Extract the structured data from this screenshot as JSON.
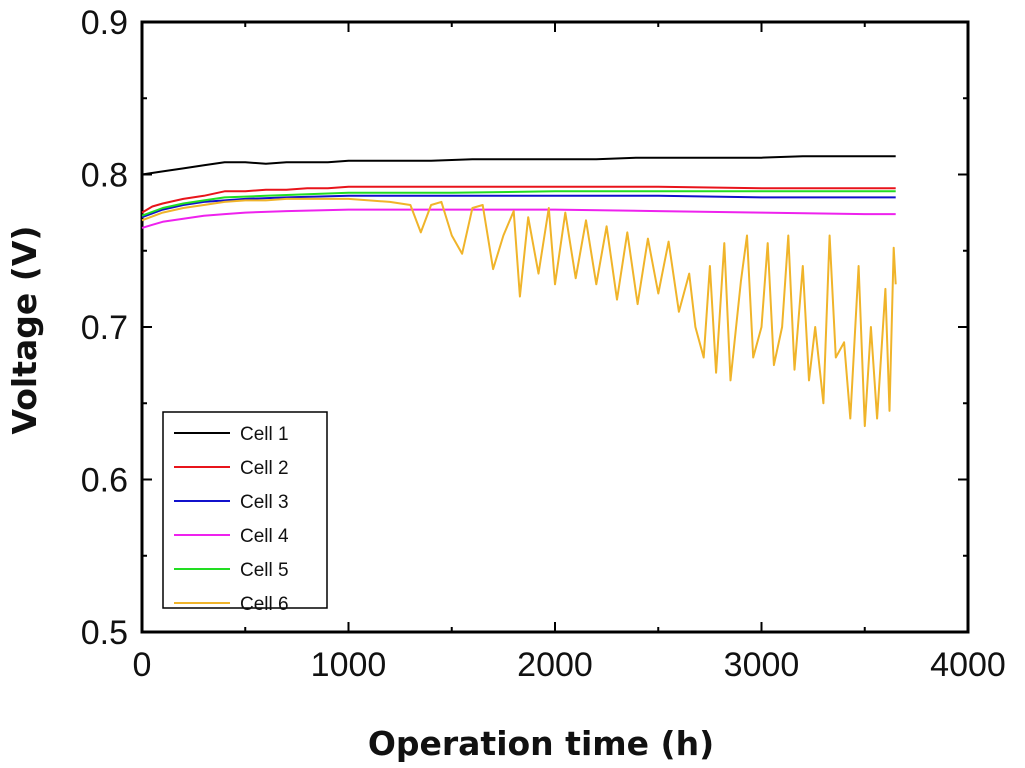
{
  "chart_data": {
    "type": "line",
    "title": "",
    "xlabel": "Operation time (h)",
    "ylabel": "Voltage (V)",
    "xlim": [
      0,
      4000
    ],
    "ylim": [
      0.5,
      0.9
    ],
    "x_ticks": [
      0,
      1000,
      2000,
      3000,
      4000
    ],
    "y_ticks": [
      0.5,
      0.6,
      0.7,
      0.8,
      0.9
    ],
    "x_tick_labels": [
      "0",
      "1000",
      "2000",
      "3000",
      "4000"
    ],
    "y_tick_labels": [
      "0.5",
      "0.6",
      "0.7",
      "0.8",
      "0.9"
    ],
    "grid": false,
    "legend_position": "bottom-left",
    "series": [
      {
        "name": "Cell 1",
        "color": "#000000",
        "points": [
          [
            0,
            0.8
          ],
          [
            100,
            0.802
          ],
          [
            200,
            0.804
          ],
          [
            300,
            0.806
          ],
          [
            400,
            0.808
          ],
          [
            500,
            0.808
          ],
          [
            600,
            0.807
          ],
          [
            700,
            0.808
          ],
          [
            800,
            0.808
          ],
          [
            900,
            0.808
          ],
          [
            1000,
            0.809
          ],
          [
            1200,
            0.809
          ],
          [
            1400,
            0.809
          ],
          [
            1600,
            0.81
          ],
          [
            1800,
            0.81
          ],
          [
            2000,
            0.81
          ],
          [
            2200,
            0.81
          ],
          [
            2400,
            0.811
          ],
          [
            2600,
            0.811
          ],
          [
            2800,
            0.811
          ],
          [
            3000,
            0.811
          ],
          [
            3200,
            0.812
          ],
          [
            3400,
            0.812
          ],
          [
            3600,
            0.812
          ],
          [
            3650,
            0.812
          ]
        ]
      },
      {
        "name": "Cell 2",
        "color": "#e8141b",
        "points": [
          [
            0,
            0.775
          ],
          [
            50,
            0.779
          ],
          [
            100,
            0.781
          ],
          [
            200,
            0.784
          ],
          [
            300,
            0.786
          ],
          [
            400,
            0.789
          ],
          [
            500,
            0.789
          ],
          [
            600,
            0.79
          ],
          [
            700,
            0.79
          ],
          [
            800,
            0.791
          ],
          [
            900,
            0.791
          ],
          [
            1000,
            0.792
          ],
          [
            1500,
            0.792
          ],
          [
            2000,
            0.792
          ],
          [
            2500,
            0.792
          ],
          [
            3000,
            0.791
          ],
          [
            3500,
            0.791
          ],
          [
            3650,
            0.791
          ]
        ]
      },
      {
        "name": "Cell 3",
        "color": "#1111cc",
        "points": [
          [
            0,
            0.772
          ],
          [
            100,
            0.777
          ],
          [
            200,
            0.78
          ],
          [
            300,
            0.782
          ],
          [
            400,
            0.783
          ],
          [
            500,
            0.784
          ],
          [
            700,
            0.785
          ],
          [
            1000,
            0.786
          ],
          [
            1500,
            0.786
          ],
          [
            2000,
            0.786
          ],
          [
            2500,
            0.786
          ],
          [
            3000,
            0.785
          ],
          [
            3500,
            0.785
          ],
          [
            3650,
            0.785
          ]
        ]
      },
      {
        "name": "Cell 4",
        "color": "#ee22ee",
        "points": [
          [
            0,
            0.765
          ],
          [
            50,
            0.767
          ],
          [
            100,
            0.769
          ],
          [
            200,
            0.771
          ],
          [
            300,
            0.773
          ],
          [
            400,
            0.774
          ],
          [
            500,
            0.775
          ],
          [
            700,
            0.776
          ],
          [
            1000,
            0.777
          ],
          [
            1500,
            0.777
          ],
          [
            2000,
            0.777
          ],
          [
            2500,
            0.776
          ],
          [
            3000,
            0.775
          ],
          [
            3500,
            0.774
          ],
          [
            3650,
            0.774
          ]
        ]
      },
      {
        "name": "Cell 5",
        "color": "#22dd22",
        "points": [
          [
            0,
            0.773
          ],
          [
            100,
            0.778
          ],
          [
            200,
            0.781
          ],
          [
            300,
            0.783
          ],
          [
            400,
            0.785
          ],
          [
            600,
            0.786
          ],
          [
            800,
            0.787
          ],
          [
            1000,
            0.788
          ],
          [
            1500,
            0.788
          ],
          [
            2000,
            0.789
          ],
          [
            2500,
            0.789
          ],
          [
            3000,
            0.789
          ],
          [
            3500,
            0.789
          ],
          [
            3650,
            0.789
          ]
        ]
      },
      {
        "name": "Cell 6",
        "color": "#f0b42a",
        "points": [
          [
            0,
            0.77
          ],
          [
            100,
            0.775
          ],
          [
            200,
            0.778
          ],
          [
            300,
            0.78
          ],
          [
            400,
            0.782
          ],
          [
            500,
            0.783
          ],
          [
            600,
            0.783
          ],
          [
            700,
            0.784
          ],
          [
            800,
            0.784
          ],
          [
            900,
            0.784
          ],
          [
            1000,
            0.784
          ],
          [
            1100,
            0.783
          ],
          [
            1200,
            0.782
          ],
          [
            1300,
            0.78
          ],
          [
            1350,
            0.762
          ],
          [
            1400,
            0.78
          ],
          [
            1450,
            0.782
          ],
          [
            1500,
            0.76
          ],
          [
            1550,
            0.748
          ],
          [
            1600,
            0.778
          ],
          [
            1650,
            0.78
          ],
          [
            1700,
            0.738
          ],
          [
            1750,
            0.76
          ],
          [
            1800,
            0.776
          ],
          [
            1830,
            0.72
          ],
          [
            1870,
            0.772
          ],
          [
            1920,
            0.735
          ],
          [
            1970,
            0.778
          ],
          [
            2000,
            0.728
          ],
          [
            2050,
            0.775
          ],
          [
            2100,
            0.732
          ],
          [
            2150,
            0.77
          ],
          [
            2200,
            0.728
          ],
          [
            2250,
            0.766
          ],
          [
            2300,
            0.718
          ],
          [
            2350,
            0.762
          ],
          [
            2400,
            0.715
          ],
          [
            2450,
            0.758
          ],
          [
            2500,
            0.722
          ],
          [
            2550,
            0.756
          ],
          [
            2600,
            0.71
          ],
          [
            2650,
            0.735
          ],
          [
            2680,
            0.7
          ],
          [
            2720,
            0.68
          ],
          [
            2750,
            0.74
          ],
          [
            2780,
            0.67
          ],
          [
            2820,
            0.755
          ],
          [
            2850,
            0.665
          ],
          [
            2900,
            0.73
          ],
          [
            2930,
            0.76
          ],
          [
            2960,
            0.68
          ],
          [
            3000,
            0.7
          ],
          [
            3030,
            0.755
          ],
          [
            3060,
            0.675
          ],
          [
            3100,
            0.7
          ],
          [
            3130,
            0.76
          ],
          [
            3160,
            0.672
          ],
          [
            3200,
            0.74
          ],
          [
            3230,
            0.665
          ],
          [
            3260,
            0.7
          ],
          [
            3300,
            0.65
          ],
          [
            3330,
            0.76
          ],
          [
            3360,
            0.68
          ],
          [
            3400,
            0.69
          ],
          [
            3430,
            0.64
          ],
          [
            3470,
            0.74
          ],
          [
            3500,
            0.635
          ],
          [
            3530,
            0.7
          ],
          [
            3560,
            0.64
          ],
          [
            3600,
            0.725
          ],
          [
            3620,
            0.645
          ],
          [
            3640,
            0.752
          ],
          [
            3650,
            0.728
          ]
        ]
      }
    ]
  }
}
